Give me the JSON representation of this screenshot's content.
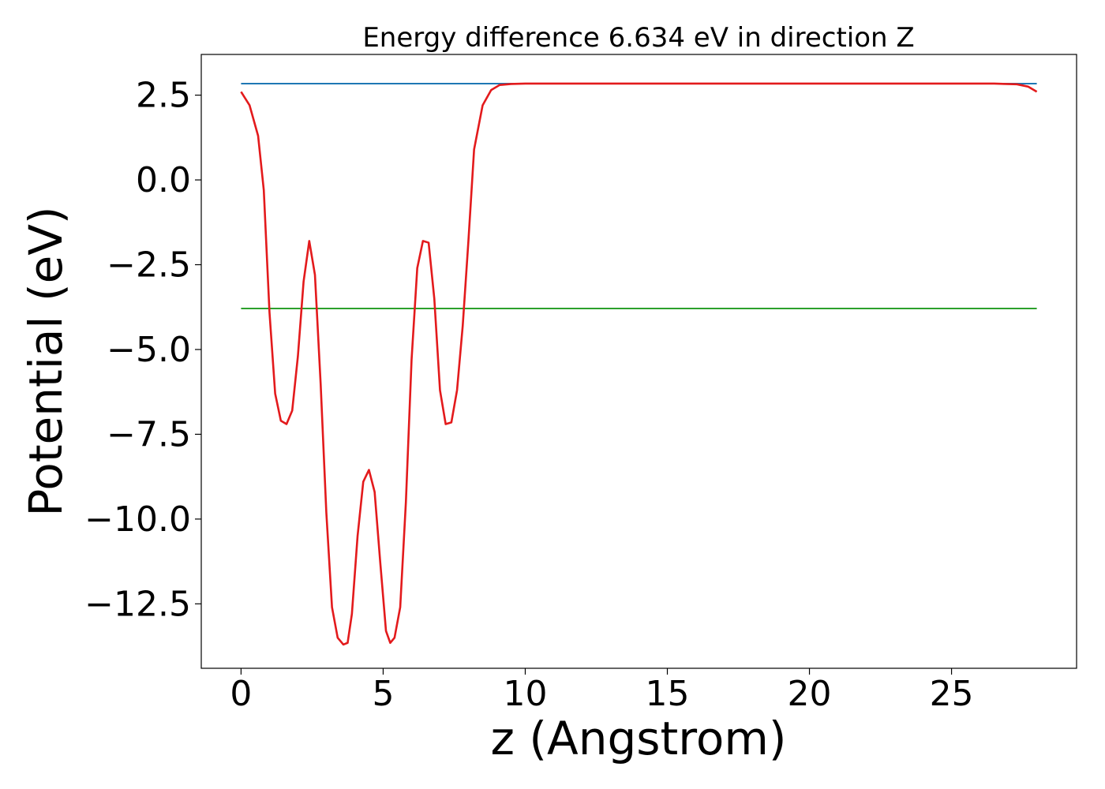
{
  "chart_data": {
    "type": "line",
    "title": "Energy difference 6.634 eV in direction Z",
    "xlabel": "z (Angstrom)",
    "ylabel": "Potential (eV)",
    "xlim": [
      -1.4,
      29.4
    ],
    "ylim": [
      -14.4,
      3.7
    ],
    "xticks": [
      0,
      5,
      10,
      15,
      20,
      25
    ],
    "xtick_labels": [
      "0",
      "5",
      "10",
      "15",
      "20",
      "25"
    ],
    "yticks": [
      2.5,
      0.0,
      -2.5,
      -5.0,
      -7.5,
      -10.0,
      -12.5
    ],
    "ytick_labels": [
      "2.5",
      "0.0",
      "−2.5",
      "−5.0",
      "−7.5",
      "−10.0",
      "−12.5"
    ],
    "grid": false,
    "series": [
      {
        "color": "#1f77b4",
        "x": [
          0,
          28
        ],
        "y": [
          2.84,
          2.84
        ]
      },
      {
        "color": "#2ca02c",
        "x": [
          0,
          28
        ],
        "y": [
          -3.79,
          -3.79
        ]
      },
      {
        "color": "#e31a1c",
        "x": [
          0,
          0.3,
          0.6,
          0.8,
          1.0,
          1.2,
          1.4,
          1.6,
          1.8,
          2.0,
          2.2,
          2.4,
          2.6,
          2.8,
          3.0,
          3.2,
          3.4,
          3.6,
          3.75,
          3.9,
          4.1,
          4.3,
          4.5,
          4.7,
          4.9,
          5.1,
          5.25,
          5.4,
          5.6,
          5.8,
          6.0,
          6.2,
          6.4,
          6.6,
          6.8,
          7.0,
          7.2,
          7.4,
          7.6,
          7.8,
          8.0,
          8.2,
          8.5,
          8.8,
          9.1,
          9.5,
          10.0,
          11.0,
          15.0,
          20.0,
          25.0,
          26.5,
          27.3,
          27.7,
          28.0
        ],
        "y": [
          2.6,
          2.2,
          1.3,
          -0.3,
          -3.9,
          -6.3,
          -7.1,
          -7.2,
          -6.8,
          -5.2,
          -3.0,
          -1.8,
          -2.8,
          -6.0,
          -9.8,
          -12.6,
          -13.5,
          -13.7,
          -13.65,
          -12.8,
          -10.5,
          -8.9,
          -8.55,
          -9.2,
          -11.3,
          -13.3,
          -13.65,
          -13.5,
          -12.6,
          -9.5,
          -5.3,
          -2.6,
          -1.8,
          -1.85,
          -3.5,
          -6.2,
          -7.2,
          -7.15,
          -6.2,
          -4.3,
          -1.8,
          0.9,
          2.2,
          2.65,
          2.8,
          2.83,
          2.84,
          2.84,
          2.84,
          2.84,
          2.84,
          2.84,
          2.82,
          2.75,
          2.6
        ]
      }
    ]
  }
}
